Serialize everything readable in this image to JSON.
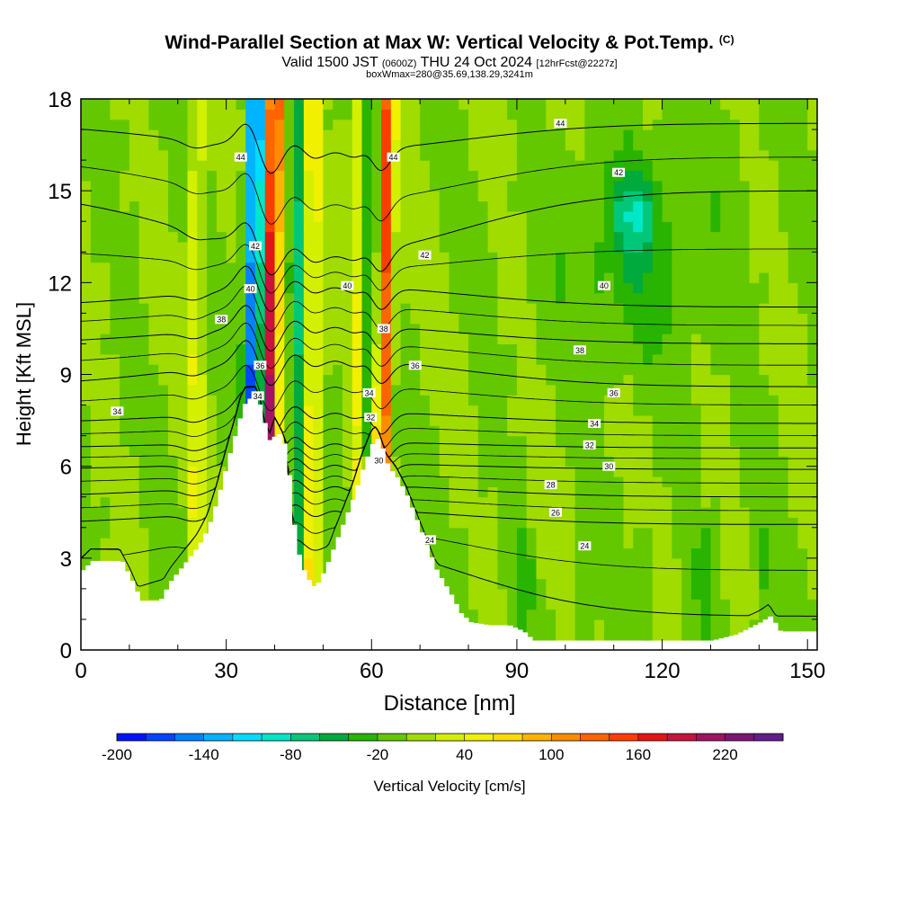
{
  "chart_data": {
    "type": "heatmap",
    "title": "Wind-Parallel Section at Max W: Vertical Velocity & Pot.Temp.",
    "title_mark": "(C)",
    "subtitle_prefix": "Valid 1500 JST",
    "subtitle_utc": "(0600Z)",
    "subtitle_date": "THU 24 Oct 2024",
    "subtitle_fcst": "[12hrFcst@2227z]",
    "subtitle2": "boxWmax=280@35.69,138.29,3241m",
    "xlabel": "Distance [nm]",
    "ylabel": "Height [Kft MSL]",
    "xlim": [
      0,
      152
    ],
    "ylim": [
      0,
      18
    ],
    "xticks": [
      "0",
      "30",
      "60",
      "90",
      "120",
      "150"
    ],
    "yticks": [
      "0",
      "3",
      "6",
      "9",
      "12",
      "15",
      "18"
    ],
    "colorbar": {
      "label": "Vertical Velocity [cm/s]",
      "tick_labels": [
        "-200",
        "-140",
        "-80",
        "-20",
        "40",
        "100",
        "160",
        "220"
      ],
      "levels": [
        -200,
        -180,
        -160,
        -140,
        -120,
        -100,
        -80,
        -60,
        -40,
        -20,
        0,
        20,
        40,
        60,
        80,
        100,
        120,
        140,
        160,
        180,
        200,
        220,
        240
      ],
      "colors": [
        "#0014ff",
        "#0046ff",
        "#0082ff",
        "#00b4ff",
        "#00dcff",
        "#00e6c8",
        "#00c878",
        "#00aa3c",
        "#28b400",
        "#64c800",
        "#a0dc00",
        "#d2f000",
        "#f0f000",
        "#ffdc00",
        "#ffb400",
        "#ff8c00",
        "#ff6400",
        "#ff3c00",
        "#e61414",
        "#c8143c",
        "#a01464",
        "#7d1478",
        "#641e8c"
      ]
    },
    "terrain_kft": [
      [
        0,
        2.6
      ],
      [
        2,
        2.9
      ],
      [
        8,
        2.9
      ],
      [
        10,
        2.3
      ],
      [
        12,
        1.6
      ],
      [
        16,
        1.6
      ],
      [
        18,
        2.2
      ],
      [
        20,
        2.6
      ],
      [
        22,
        3.0
      ],
      [
        24,
        3.4
      ],
      [
        26,
        4.0
      ],
      [
        28,
        5.0
      ],
      [
        30,
        6.2
      ],
      [
        32,
        7.3
      ],
      [
        33,
        7.9
      ],
      [
        34,
        8.2
      ],
      [
        36,
        8.2
      ],
      [
        37,
        7.8
      ],
      [
        38,
        7.0
      ],
      [
        39,
        6.7
      ],
      [
        40,
        7.2
      ],
      [
        42,
        6.6
      ],
      [
        44,
        3.4
      ],
      [
        46,
        2.4
      ],
      [
        48,
        2.0
      ],
      [
        50,
        2.6
      ],
      [
        52,
        3.4
      ],
      [
        54,
        4.2
      ],
      [
        56,
        5.0
      ],
      [
        58,
        6.0
      ],
      [
        60,
        6.8
      ],
      [
        61,
        6.9
      ],
      [
        62,
        6.5
      ],
      [
        63,
        6.0
      ],
      [
        65,
        5.6
      ],
      [
        67,
        5.0
      ],
      [
        70,
        3.8
      ],
      [
        73,
        2.6
      ],
      [
        76,
        1.8
      ],
      [
        78,
        1.2
      ],
      [
        80,
        0.9
      ],
      [
        84,
        0.8
      ],
      [
        88,
        0.8
      ],
      [
        91,
        0.6
      ],
      [
        93,
        0.3
      ],
      [
        100,
        0.3
      ],
      [
        110,
        0.3
      ],
      [
        130,
        0.3
      ],
      [
        135,
        0.5
      ],
      [
        140,
        0.9
      ],
      [
        142,
        1.1
      ],
      [
        144,
        0.6
      ],
      [
        148,
        0.6
      ],
      [
        152,
        0.6
      ]
    ],
    "updraft_bands": [
      {
        "x_center": 38.5,
        "x_center_top": 40,
        "w_cm_s": 200,
        "half_width_nm": 1.5
      },
      {
        "x_center": 61.5,
        "x_center_top": 63.5,
        "w_cm_s": 150,
        "half_width_nm": 1.4
      },
      {
        "x_center": 47.5,
        "x_center_top": 48,
        "w_cm_s": 60,
        "half_width_nm": 1.5
      },
      {
        "x_center": 23.5,
        "x_center_top": 24,
        "w_cm_s": 40,
        "half_width_nm": 1.5
      },
      {
        "x_center": 56.5,
        "x_center_top": 57,
        "w_cm_s": 40,
        "half_width_nm": 1.3
      }
    ],
    "downdraft_bands": [
      {
        "x_center": 35,
        "x_center_top": 36,
        "w_cm_s": -180,
        "half_width_nm": 1.6,
        "y_bottom_kft": 8.2
      },
      {
        "x_center": 44.5,
        "x_center_top": 45,
        "w_cm_s": -60,
        "half_width_nm": 1.4
      },
      {
        "x_center": 59.5,
        "x_center_top": 60,
        "w_cm_s": -60,
        "half_width_nm": 1.0,
        "y_bottom_kft": 7.5
      }
    ],
    "downdraft_patches": [
      {
        "x_center": 114,
        "y_center_kft": 14.3,
        "w_cm_s": -50,
        "x_radius_nm": 4,
        "y_radius_kft": 1.3
      },
      {
        "x_center": 115,
        "y_center_kft": 13.0,
        "w_cm_s": -35,
        "x_radius_nm": 15,
        "y_radius_kft": 3.5
      }
    ],
    "theta_contours": [
      {
        "label": "24",
        "y_east_kft": 1.1,
        "y_mid_kft": 3.5
      },
      {
        "label": "26",
        "y_east_kft": 4.1,
        "y_mid_kft": 4.6
      },
      {
        "label": "28",
        "y_east_kft": 5.0,
        "y_mid_kft": 5.4
      },
      {
        "label": "30",
        "y_east_kft": 5.9,
        "y_mid_kft": 6.1
      },
      {
        "label": "32",
        "y_east_kft": 6.6,
        "y_mid_kft": 6.8
      },
      {
        "label": "34",
        "y_east_kft": 7.4,
        "y_mid_kft": 7.8
      },
      {
        "label": "36",
        "y_east_kft": 8.6,
        "y_mid_kft": 9.5
      },
      {
        "label": "38",
        "y_east_kft": 10.0,
        "y_mid_kft": 10.6
      },
      {
        "label": "40",
        "y_east_kft": 11.2,
        "y_mid_kft": 11.9
      },
      {
        "label": "42",
        "y_east_kft": 15.0,
        "y_mid_kft": 12.9
      },
      {
        "label": "44",
        "y_east_kft": 17.2,
        "y_mid_kft": 16.3
      }
    ],
    "theta_label_positions": [
      {
        "text": "34",
        "x": 7.5,
        "y": 7.8
      },
      {
        "text": "38",
        "x": 29,
        "y": 10.8
      },
      {
        "text": "44",
        "x": 33,
        "y": 16.1
      },
      {
        "text": "40",
        "x": 35,
        "y": 11.8
      },
      {
        "text": "36",
        "x": 37,
        "y": 9.3
      },
      {
        "text": "34",
        "x": 36.5,
        "y": 8.3
      },
      {
        "text": "42",
        "x": 36,
        "y": 13.2
      },
      {
        "text": "40",
        "x": 55,
        "y": 11.9
      },
      {
        "text": "44",
        "x": 64.5,
        "y": 16.1
      },
      {
        "text": "38",
        "x": 62.5,
        "y": 10.5
      },
      {
        "text": "34",
        "x": 59.5,
        "y": 8.4
      },
      {
        "text": "32",
        "x": 59.8,
        "y": 7.6
      },
      {
        "text": "30",
        "x": 61.5,
        "y": 6.2
      },
      {
        "text": "36",
        "x": 69,
        "y": 9.3
      },
      {
        "text": "42",
        "x": 71,
        "y": 12.9
      },
      {
        "text": "44",
        "x": 99,
        "y": 17.2
      },
      {
        "text": "42",
        "x": 111,
        "y": 15.6
      },
      {
        "text": "40",
        "x": 108,
        "y": 11.9
      },
      {
        "text": "38",
        "x": 103,
        "y": 9.8
      },
      {
        "text": "36",
        "x": 110,
        "y": 8.4
      },
      {
        "text": "34",
        "x": 106,
        "y": 7.4
      },
      {
        "text": "32",
        "x": 105,
        "y": 6.7
      },
      {
        "text": "30",
        "x": 109,
        "y": 6.0
      },
      {
        "text": "28",
        "x": 97,
        "y": 5.4
      },
      {
        "text": "26",
        "x": 98,
        "y": 4.5
      },
      {
        "text": "24",
        "x": 104,
        "y": 3.4
      },
      {
        "text": "24",
        "x": 72,
        "y": 3.6
      }
    ],
    "colors": {
      "background_field": "#a6dc00",
      "terrain": "#ffffff",
      "contour": "#000000"
    }
  }
}
